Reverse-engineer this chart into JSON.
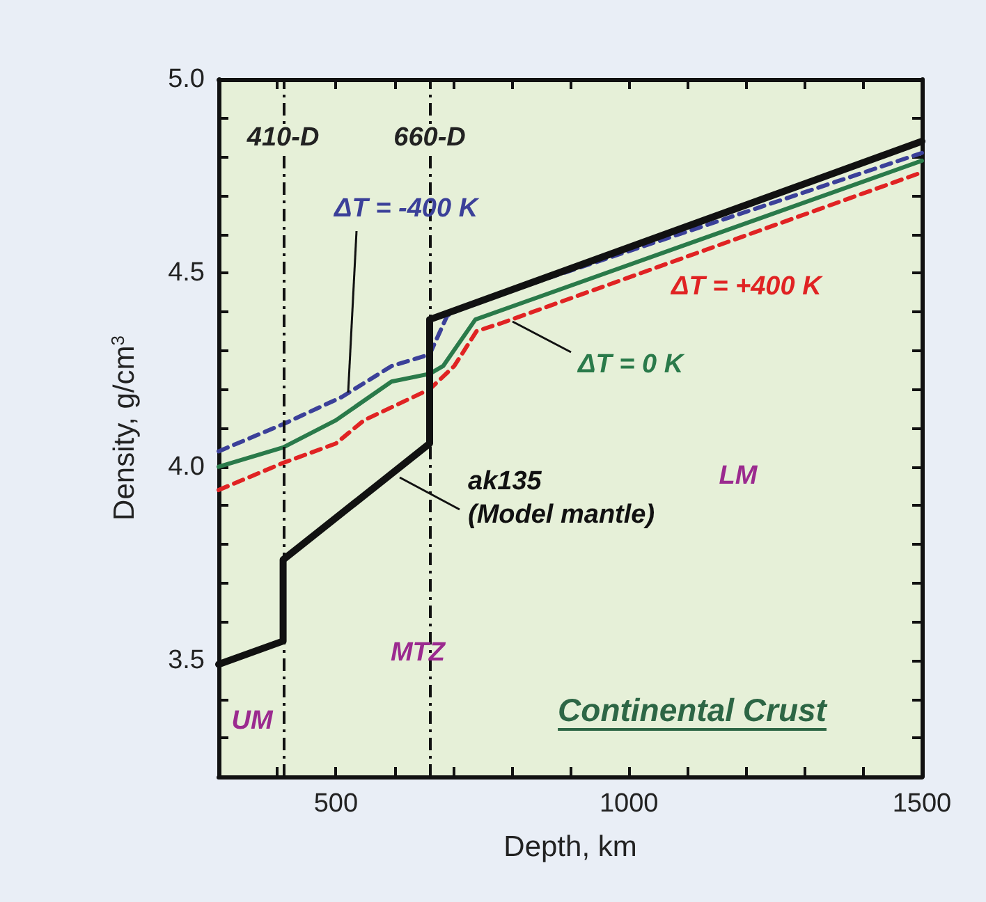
{
  "chart_data": {
    "type": "line",
    "title": "Continental Crust",
    "xlabel": "Depth, km",
    "ylabel": "Density, g/cm$^{3}$",
    "xlim": [
      300,
      1500
    ],
    "xticks": [
      {
        "value": 400,
        "label": null
      },
      500,
      {
        "value": 600,
        "label": null
      },
      {
        "value": 700,
        "label": null
      },
      {
        "value": 800,
        "label": null
      },
      {
        "value": 900,
        "label": null
      },
      1000,
      {
        "value": 1100,
        "label": null
      },
      {
        "value": 1200,
        "label": null
      },
      {
        "value": 1300,
        "label": null
      },
      {
        "value": 1400,
        "label": null
      },
      1500
    ],
    "ylim": [
      3.2,
      5.0
    ],
    "yticks": [
      {
        "value": 3.3,
        "label": null
      },
      {
        "value": 3.4,
        "label": null
      },
      3.5,
      {
        "value": 3.6,
        "label": null
      },
      {
        "value": 3.7,
        "label": null
      },
      {
        "value": 3.8,
        "label": null
      },
      {
        "value": 3.9,
        "label": null
      },
      {
        "value": 4.0,
        "label": "4.0"
      },
      {
        "value": 4.1,
        "label": null
      },
      {
        "value": 4.2,
        "label": null
      },
      {
        "value": 4.3,
        "label": null
      },
      {
        "value": 4.4,
        "label": null
      },
      4.5,
      {
        "value": 4.6,
        "label": null
      },
      {
        "value": 4.7,
        "label": null
      },
      {
        "value": 4.8,
        "label": null
      },
      {
        "value": 4.9,
        "label": null
      },
      {
        "value": 5.0,
        "label": "5.0"
      }
    ],
    "series": [
      {
        "name": "ak135 (Model mantle)",
        "color": "#111111",
        "line_style": "solid",
        "x": [
          300,
          410,
          410,
          660,
          660,
          1500
        ],
        "values": [
          3.49,
          3.55,
          3.76,
          4.06,
          4.38,
          4.84
        ]
      },
      {
        "name": "ΔT = -400 K",
        "color": "#3b4099",
        "line_style": "dashed",
        "x": [
          300,
          410,
          510,
          595,
          660,
          690,
          730,
          1500
        ],
        "values": [
          4.04,
          4.11,
          4.18,
          4.26,
          4.29,
          4.39,
          4.42,
          4.81
        ]
      },
      {
        "name": "ΔT = 0 K",
        "color": "#2a7a4a",
        "line_style": "solid",
        "x": [
          300,
          410,
          500,
          595,
          660,
          683,
          738,
          1500
        ],
        "values": [
          4.0,
          4.05,
          4.12,
          4.22,
          4.24,
          4.26,
          4.38,
          4.79
        ]
      },
      {
        "name": "ΔT = +400 K",
        "color": "#e02323",
        "line_style": "dashed",
        "x": [
          300,
          410,
          500,
          548,
          660,
          702,
          740,
          781,
          1500
        ],
        "values": [
          3.94,
          4.01,
          4.06,
          4.12,
          4.2,
          4.26,
          4.35,
          4.37,
          4.76
        ]
      }
    ],
    "ref_lines": [
      {
        "axis": "x",
        "value": 410,
        "label": "410-D",
        "line_style": "dashdot",
        "color": "#111111"
      },
      {
        "axis": "x",
        "value": 660,
        "label": "660-D",
        "line_style": "dashdot",
        "color": "#111111"
      }
    ],
    "annotations": [
      "UM",
      "MTZ",
      "LM"
    ],
    "marker": "none"
  }
}
